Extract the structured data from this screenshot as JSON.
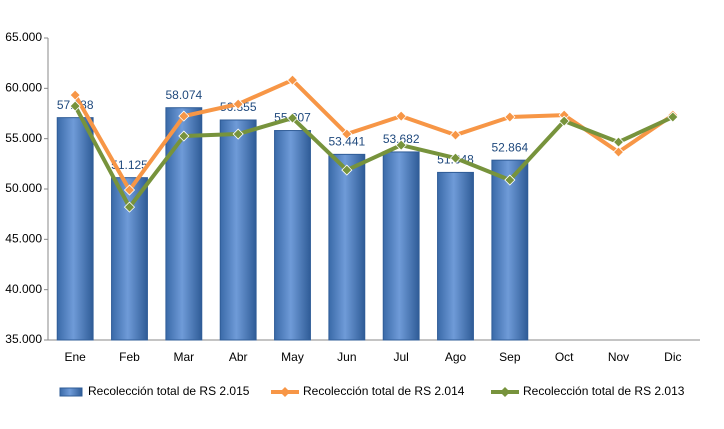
{
  "chart_data": {
    "type": "bar",
    "categories": [
      "Ene",
      "Feb",
      "Mar",
      "Abr",
      "May",
      "Jun",
      "Jul",
      "Ago",
      "Sep",
      "Oct",
      "Nov",
      "Dic"
    ],
    "series": [
      {
        "name": "Recolección total de RS 2.015",
        "type": "bar",
        "color": "#4f81bd",
        "values": [
          57088,
          51125,
          58074,
          56855,
          55807,
          53441,
          53682,
          51648,
          52864,
          null,
          null,
          null
        ],
        "value_labels": [
          "57.088",
          "51.125",
          "58.074",
          "56.855",
          "55.807",
          "53.441",
          "53.682",
          "51.648",
          "52.864",
          null,
          null,
          null
        ]
      },
      {
        "name": "Recolección total de RS 2.014",
        "type": "line",
        "color": "#f79646",
        "values": [
          59330,
          49900,
          57240,
          58440,
          60820,
          55460,
          57240,
          55360,
          57150,
          57340,
          53670,
          57340
        ]
      },
      {
        "name": "Recolección total de RS 2.013",
        "type": "line",
        "color": "#77933c",
        "values": [
          58240,
          48200,
          55260,
          55460,
          57050,
          51880,
          54360,
          53070,
          50890,
          56750,
          54660,
          57150
        ]
      }
    ],
    "ylim": [
      35000,
      65000
    ],
    "yticks": [
      {
        "value": 35000,
        "label": "35.000"
      },
      {
        "value": 40000,
        "label": "40.000"
      },
      {
        "value": 45000,
        "label": "45.000"
      },
      {
        "value": 50000,
        "label": "50.000"
      },
      {
        "value": 55000,
        "label": "55.000"
      },
      {
        "value": 60000,
        "label": "60.000"
      },
      {
        "value": 65000,
        "label": "65.000"
      }
    ],
    "legend": "bottom"
  }
}
